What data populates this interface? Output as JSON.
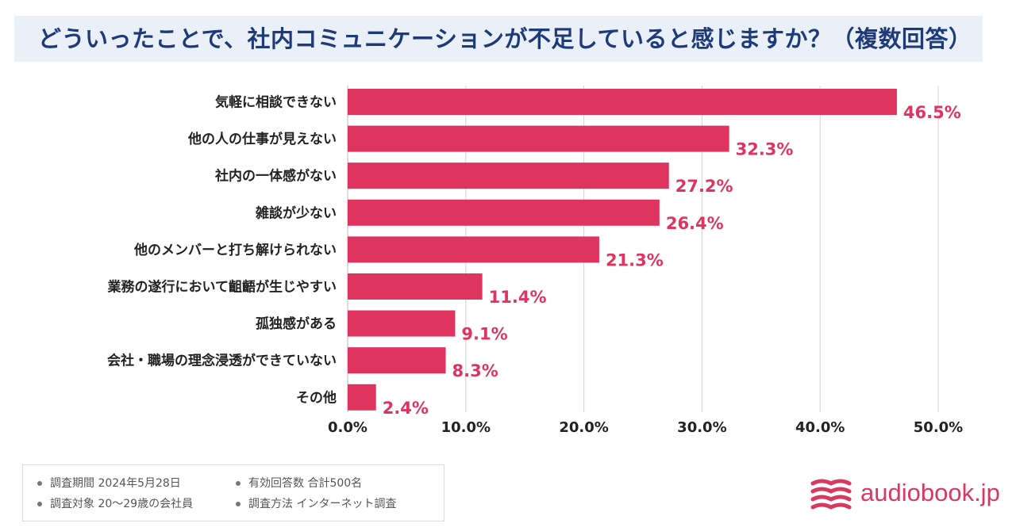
{
  "title": "どういったことで、社内コミュニケーションが不足していると感じますか？（複数回答）",
  "chart_data": {
    "type": "bar",
    "orientation": "horizontal",
    "title": "どういったことで、社内コミュニケーションが不足していると感じますか？（複数回答）",
    "categories": [
      "気軽に相談できない",
      "他の人の仕事が見えない",
      "社内の一体感がない",
      "雑談が少ない",
      "他のメンバーと打ち解けられない",
      "業務の遂行において齟齬が生じやすい",
      "孤独感がある",
      "会社・職場の理念浸透ができていない",
      "その他"
    ],
    "values": [
      46.5,
      32.3,
      27.2,
      26.4,
      21.3,
      11.4,
      9.1,
      8.3,
      2.4
    ],
    "value_labels": [
      "46.5%",
      "32.3%",
      "27.2%",
      "26.4%",
      "21.3%",
      "11.4%",
      "9.1%",
      "8.3%",
      "2.4%"
    ],
    "xlim": [
      0,
      50
    ],
    "xticks": [
      0,
      10,
      20,
      30,
      40,
      50
    ],
    "xtick_labels": [
      "0.0%",
      "10.0%",
      "20.0%",
      "30.0%",
      "40.0%",
      "50.0%"
    ],
    "xlabel": "",
    "ylabel": "",
    "grid": true,
    "colors": {
      "bar": "#df3460",
      "label": "#df3460",
      "grid": "#d4d4d4",
      "text": "#222222"
    }
  },
  "notes": {
    "period": "調査期間 2024年5月28日",
    "respondents": "有効回答数 合計500名",
    "target": "調査対象 20〜29歳の会社員",
    "method": "調査方法 インターネット調査"
  },
  "brand": {
    "name": "audiobook.jp",
    "icon": "book-stack-icon",
    "color": "#d93861"
  }
}
